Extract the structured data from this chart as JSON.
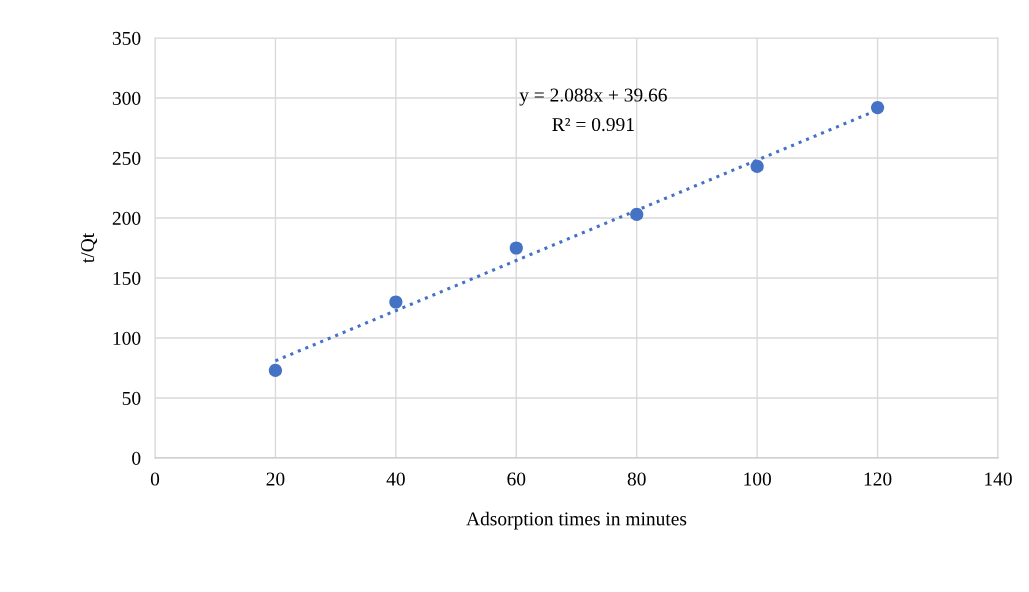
{
  "chart_data": {
    "type": "scatter",
    "xlabel": "Adsorption times in minutes",
    "ylabel": "t/Qt",
    "x": [
      20,
      40,
      60,
      80,
      100,
      120
    ],
    "series": [
      {
        "color": "#4472c4",
        "values": [
          73,
          130,
          175,
          203,
          243,
          292
        ],
        "marker": "circle"
      },
      {
        "type": "line",
        "color": "#4472c4",
        "x": [
          20,
          120
        ],
        "values": [
          81,
          290
        ],
        "line_style": "dotted",
        "marker": "none"
      }
    ],
    "annotations": [
      "y = 2.088x + 39.66",
      "R² = 0.991"
    ],
    "xlim": [
      0,
      140
    ],
    "xticks": [
      0,
      20,
      40,
      60,
      80,
      100,
      120,
      140
    ],
    "ylim": [
      0,
      350
    ],
    "yticks": [
      0,
      50,
      100,
      150,
      200,
      250,
      300,
      350
    ],
    "grid": true,
    "legend": false
  }
}
